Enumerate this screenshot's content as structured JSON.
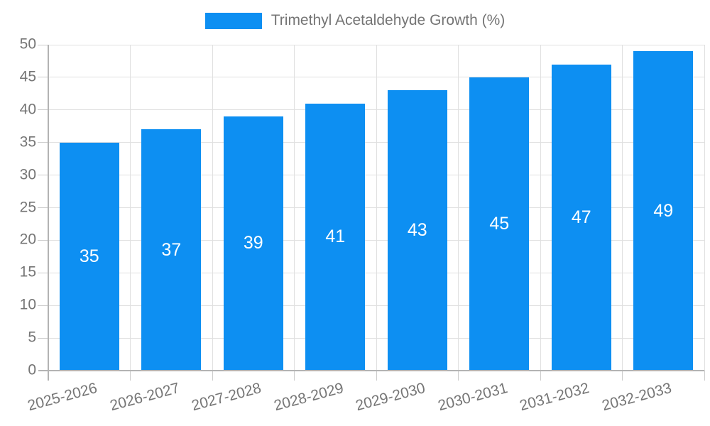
{
  "chart_data": {
    "type": "bar",
    "title": "",
    "legend": "Trimethyl Acetaldehyde Growth (%)",
    "legend_position": "top",
    "categories": [
      "2025-2026",
      "2026-2027",
      "2027-2028",
      "2028-2029",
      "2029-2030",
      "2030-2031",
      "2031-2032",
      "2032-2033"
    ],
    "values": [
      35,
      37,
      39,
      41,
      43,
      45,
      47,
      49
    ],
    "value_labels": [
      "35",
      "37",
      "39",
      "41",
      "43",
      "45",
      "47",
      "49"
    ],
    "xlabel": "",
    "ylabel": "",
    "ylim": [
      0,
      50
    ],
    "ytick_step": 5,
    "y_tick_labels": [
      "0",
      "5",
      "10",
      "15",
      "20",
      "25",
      "30",
      "35",
      "40",
      "45",
      "50"
    ],
    "grid": true,
    "x_label_rotation_deg": -15,
    "colors": {
      "bar": "#0D8FF2",
      "value_label": "#FFFFFF",
      "axis_text": "#757575",
      "grid_line": "#E0E0E0",
      "axis_line": "#B3B3B3",
      "tick": "#CCCCCC",
      "background": "#FFFFFF"
    }
  }
}
